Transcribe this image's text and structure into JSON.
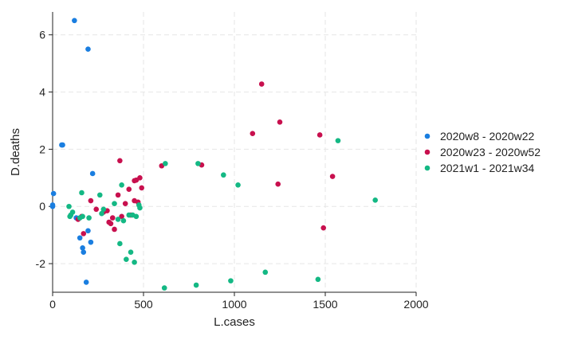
{
  "chart_data": {
    "type": "scatter",
    "title": "",
    "xlabel": "L.cases",
    "ylabel": "D.deaths",
    "xlim": [
      0,
      2000
    ],
    "ylim": [
      -3,
      6.8
    ],
    "xticks": [
      0,
      500,
      1000,
      1500,
      2000
    ],
    "xtick_labels": [
      "0",
      "500",
      "1000",
      "1500",
      "2000"
    ],
    "yticks": [
      -2,
      0,
      2,
      4,
      6
    ],
    "ytick_labels": [
      "-2",
      "0",
      "2",
      "4",
      "6"
    ],
    "grid": true,
    "legend_position": "right",
    "series": [
      {
        "name": "2020w8 - 2020w22",
        "color": "#1a7ee0",
        "x": [
          120,
          195,
          50,
          55,
          220,
          5,
          0,
          0,
          210,
          195,
          150,
          165,
          170,
          185,
          130
        ],
        "y": [
          6.5,
          5.5,
          2.15,
          2.15,
          1.15,
          0.45,
          0.05,
          0.0,
          -1.25,
          -0.85,
          -1.1,
          -1.45,
          -1.6,
          -2.65,
          -0.4
        ]
      },
      {
        "name": "2020w23 - 2020w52",
        "color": "#c8104e",
        "x": [
          1150,
          1250,
          1100,
          1470,
          1540,
          1240,
          1490,
          820,
          600,
          480,
          460,
          450,
          420,
          370,
          210,
          240,
          280,
          300,
          310,
          320,
          330,
          340,
          360,
          380,
          400,
          430,
          450,
          470,
          490,
          170,
          160,
          140
        ],
        "y": [
          4.28,
          2.95,
          2.55,
          2.5,
          1.05,
          0.78,
          -0.75,
          1.45,
          1.42,
          1.0,
          0.92,
          0.9,
          0.6,
          1.6,
          0.2,
          -0.1,
          -0.2,
          -0.15,
          -0.55,
          -0.6,
          -0.4,
          -0.8,
          0.4,
          -0.35,
          0.1,
          -0.3,
          0.2,
          0.15,
          0.65,
          -0.95,
          -0.35,
          -0.45
        ]
      },
      {
        "name": "2021w1 - 2021w34",
        "color": "#14b884",
        "x": [
          1570,
          1775,
          800,
          620,
          940,
          1020,
          1460,
          1170,
          980,
          790,
          615,
          405,
          450,
          430,
          370,
          360,
          260,
          270,
          280,
          200,
          160,
          110,
          90,
          95,
          100,
          150,
          165,
          340,
          420,
          440,
          460,
          475,
          480,
          380,
          390
        ],
        "y": [
          2.3,
          0.22,
          1.5,
          1.5,
          1.1,
          0.75,
          -2.55,
          -2.3,
          -2.6,
          -2.75,
          -2.85,
          -1.85,
          -1.95,
          -1.6,
          -1.3,
          -0.45,
          0.4,
          -0.25,
          -0.1,
          -0.4,
          0.48,
          -0.2,
          0.0,
          -0.35,
          -0.3,
          -0.4,
          -0.35,
          0.1,
          -0.3,
          -0.3,
          -0.35,
          0.05,
          -0.05,
          0.75,
          -0.5
        ]
      }
    ]
  }
}
